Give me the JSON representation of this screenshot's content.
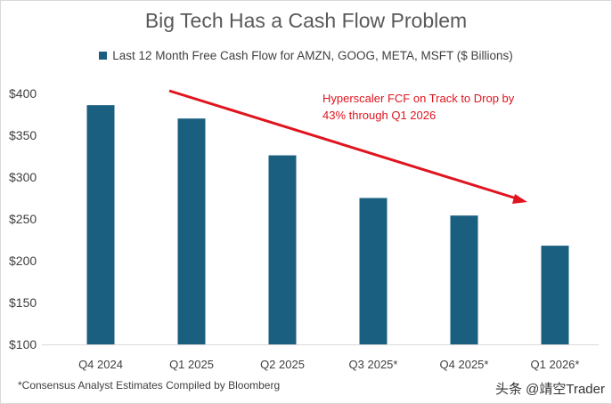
{
  "chart_data": {
    "type": "bar",
    "title": "Big Tech Has a Cash Flow Problem",
    "legend": "Last 12 Month Free Cash Flow for AMZN, GOOG, META, MSFT ($ Billions)",
    "legend_position": "top",
    "categories": [
      "Q4 2024",
      "Q1 2025",
      "Q2 2025",
      "Q3 2025*",
      "Q4 2025*",
      "Q1 2026*"
    ],
    "series": [
      {
        "name": "Last 12 Month Free Cash Flow for AMZN, GOOG, META, MSFT ($ Billions)",
        "values": [
          386,
          370,
          326,
          275,
          254,
          218
        ],
        "color": "#1a5f80"
      }
    ],
    "ylim": [
      100,
      400
    ],
    "yticks": [
      100,
      150,
      200,
      250,
      300,
      350,
      400
    ],
    "ytick_labels": [
      "$100",
      "$150",
      "$200",
      "$250",
      "$300",
      "$350",
      "$400"
    ],
    "grid": false,
    "annotation": {
      "lines": [
        "Hyperscaler FCF on Track to Drop by",
        "43% through Q1 2026"
      ],
      "color": "#e0141e"
    },
    "trend_arrow_color": "#e0141e",
    "footnote": "*Consensus Analyst Estimates Compiled by Bloomberg"
  },
  "watermark": "头条 @靖空Trader"
}
